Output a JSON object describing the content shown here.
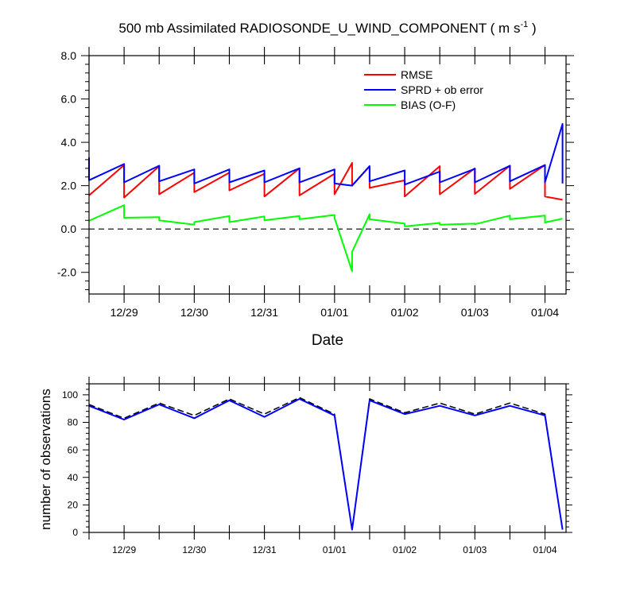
{
  "chart_data": [
    {
      "type": "line",
      "title": "500 mb Assimilated RADIOSONDE_U_WIND_COMPONENT ( m s",
      "title_superscript": "-1",
      "title_suffix": " )",
      "xlabel": "Date",
      "ylabel": "",
      "ylim": [
        -3.0,
        8.0
      ],
      "yticks": [
        -2.0,
        0.0,
        2.0,
        4.0,
        6.0,
        8.0
      ],
      "ytick_labels": [
        "-2.0",
        "0.0",
        "2.0",
        "4.0",
        "6.0",
        "8.0"
      ],
      "xlim": [
        -0.5,
        6.3
      ],
      "xtick_labels": [
        {
          "x": 0,
          "label": "12/29"
        },
        {
          "x": 1,
          "label": "12/30"
        },
        {
          "x": 2,
          "label": "12/31"
        },
        {
          "x": 3,
          "label": "01/01"
        },
        {
          "x": 4,
          "label": "01/02"
        },
        {
          "x": 5,
          "label": "01/03"
        },
        {
          "x": 6,
          "label": "01/04"
        }
      ],
      "zero_line": "dashed",
      "legend_position": "top-right",
      "series": [
        {
          "name": "RMSE",
          "color": "#ff0000",
          "points": [
            [
              -0.5,
              1.55
            ],
            [
              0.0,
              2.95
            ],
            [
              0.0,
              1.45
            ],
            [
              0.5,
              2.9
            ],
            [
              0.5,
              1.6
            ],
            [
              1.0,
              2.6
            ],
            [
              1.0,
              1.7
            ],
            [
              1.5,
              2.6
            ],
            [
              1.5,
              1.78
            ],
            [
              2.0,
              2.55
            ],
            [
              2.0,
              1.5
            ],
            [
              2.5,
              2.8
            ],
            [
              2.5,
              1.55
            ],
            [
              3.0,
              2.55
            ],
            [
              3.0,
              1.6
            ],
            [
              3.25,
              3.05
            ],
            [
              3.25,
              2.0
            ],
            [
              3.5,
              2.9
            ],
            [
              3.5,
              1.9
            ],
            [
              4.0,
              2.25
            ],
            [
              4.0,
              1.5
            ],
            [
              4.5,
              2.9
            ],
            [
              4.5,
              1.6
            ],
            [
              5.0,
              2.8
            ],
            [
              5.0,
              1.62
            ],
            [
              5.5,
              2.92
            ],
            [
              5.5,
              1.85
            ],
            [
              6.0,
              2.95
            ],
            [
              6.0,
              1.5
            ],
            [
              6.25,
              1.35
            ]
          ]
        },
        {
          "name": "SPRD + ob error",
          "color": "#0000ff",
          "points": [
            [
              -0.5,
              3.3
            ],
            [
              -0.5,
              2.25
            ],
            [
              0.0,
              3.0
            ],
            [
              0.0,
              2.15
            ],
            [
              0.5,
              2.92
            ],
            [
              0.5,
              2.2
            ],
            [
              1.0,
              2.75
            ],
            [
              1.0,
              2.1
            ],
            [
              1.5,
              2.75
            ],
            [
              1.5,
              2.15
            ],
            [
              2.0,
              2.7
            ],
            [
              2.0,
              2.15
            ],
            [
              2.5,
              2.8
            ],
            [
              2.5,
              2.15
            ],
            [
              3.0,
              2.75
            ],
            [
              3.0,
              2.1
            ],
            [
              3.25,
              2.0
            ],
            [
              3.5,
              2.9
            ],
            [
              3.5,
              2.2
            ],
            [
              4.0,
              2.7
            ],
            [
              4.0,
              2.05
            ],
            [
              4.5,
              2.65
            ],
            [
              4.5,
              2.15
            ],
            [
              5.0,
              2.78
            ],
            [
              5.0,
              2.15
            ],
            [
              5.5,
              2.92
            ],
            [
              5.5,
              2.2
            ],
            [
              6.0,
              2.95
            ],
            [
              6.0,
              2.15
            ],
            [
              6.25,
              4.85
            ],
            [
              6.25,
              2.1
            ]
          ]
        },
        {
          "name": "BIAS (O-F)",
          "color": "#00ff00",
          "points": [
            [
              -0.5,
              0.38
            ],
            [
              0.0,
              1.1
            ],
            [
              0.0,
              0.52
            ],
            [
              0.5,
              0.55
            ],
            [
              0.5,
              0.4
            ],
            [
              1.0,
              0.2
            ],
            [
              1.0,
              0.32
            ],
            [
              1.5,
              0.6
            ],
            [
              1.5,
              0.32
            ],
            [
              2.0,
              0.58
            ],
            [
              2.0,
              0.4
            ],
            [
              2.5,
              0.6
            ],
            [
              2.5,
              0.45
            ],
            [
              3.0,
              0.65
            ],
            [
              3.0,
              0.5
            ],
            [
              3.25,
              -1.95
            ],
            [
              3.25,
              -1.05
            ],
            [
              3.5,
              0.68
            ],
            [
              3.5,
              0.45
            ],
            [
              4.0,
              0.25
            ],
            [
              4.0,
              0.12
            ],
            [
              4.5,
              0.28
            ],
            [
              4.5,
              0.2
            ],
            [
              5.0,
              0.25
            ],
            [
              5.0,
              0.22
            ],
            [
              5.5,
              0.62
            ],
            [
              5.5,
              0.45
            ],
            [
              6.0,
              0.62
            ],
            [
              6.0,
              0.3
            ],
            [
              6.25,
              0.48
            ]
          ]
        }
      ]
    },
    {
      "type": "line",
      "title": "",
      "xlabel": "",
      "ylabel": "number of observations",
      "ylim": [
        0,
        108
      ],
      "yticks": [
        0,
        20,
        40,
        60,
        80,
        100
      ],
      "ytick_labels": [
        "0",
        "20",
        "40",
        "60",
        "80",
        "100"
      ],
      "xlim": [
        -0.5,
        6.3
      ],
      "xtick_labels": [
        {
          "x": 0,
          "label": "12/29"
        },
        {
          "x": 1,
          "label": "12/30"
        },
        {
          "x": 2,
          "label": "12/31"
        },
        {
          "x": 3,
          "label": "01/01"
        },
        {
          "x": 4,
          "label": "01/02"
        },
        {
          "x": 5,
          "label": "01/03"
        },
        {
          "x": 6,
          "label": "01/04"
        }
      ],
      "series": [
        {
          "color": "#000000",
          "style": "dashed",
          "points": [
            [
              -0.5,
              93
            ],
            [
              0.0,
              83
            ],
            [
              0.5,
              94
            ],
            [
              1.0,
              85
            ],
            [
              1.5,
              97
            ],
            [
              2.0,
              86
            ],
            [
              2.5,
              98
            ],
            [
              3.0,
              86
            ],
            [
              3.25,
              2
            ],
            [
              3.5,
              97
            ],
            [
              4.0,
              87
            ],
            [
              4.5,
              94
            ],
            [
              5.0,
              86
            ],
            [
              5.5,
              94
            ],
            [
              6.0,
              86
            ],
            [
              6.25,
              2
            ]
          ]
        },
        {
          "color": "#0000ff",
          "style": "solid",
          "points": [
            [
              -0.5,
              92
            ],
            [
              0.0,
              82
            ],
            [
              0.5,
              93
            ],
            [
              1.0,
              83
            ],
            [
              1.5,
              96
            ],
            [
              2.0,
              84
            ],
            [
              2.5,
              97
            ],
            [
              3.0,
              85
            ],
            [
              3.25,
              2
            ],
            [
              3.5,
              96
            ],
            [
              4.0,
              86
            ],
            [
              4.5,
              92
            ],
            [
              5.0,
              85
            ],
            [
              5.5,
              92
            ],
            [
              6.0,
              85
            ],
            [
              6.25,
              2
            ]
          ]
        }
      ]
    }
  ]
}
